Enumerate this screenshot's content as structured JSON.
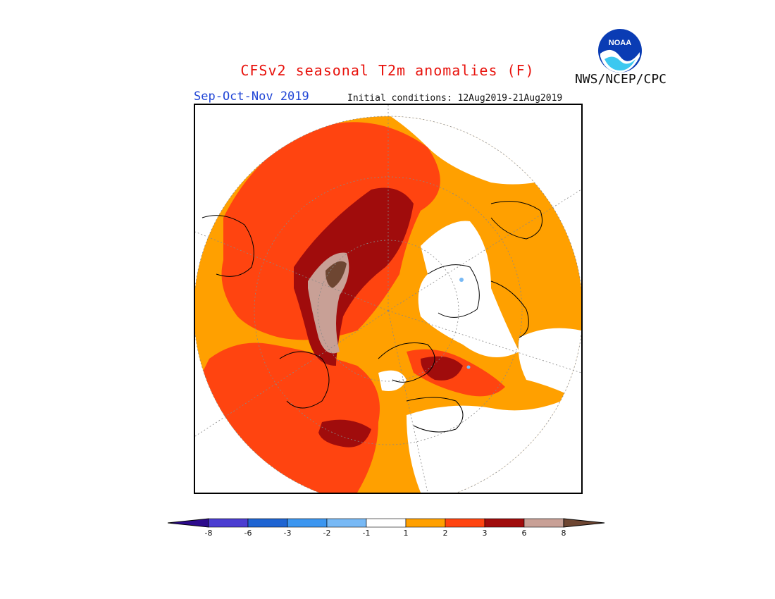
{
  "header": {
    "title": "CFSv2 seasonal T2m anomalies (F)",
    "agency": "NWS/NCEP/CPC",
    "season": "Sep-Oct-Nov 2019",
    "initial_conditions": "Initial conditions: 12Aug2019-21Aug2019",
    "logo_text": "NOAA"
  },
  "colorbar": {
    "colors": [
      "#2c0a8c",
      "#4b3dd1",
      "#1e64d2",
      "#3c96f0",
      "#78b9f5",
      "#ffffff",
      "#ffa000",
      "#ff4410",
      "#a00c0c",
      "#c8a096",
      "#6e4632"
    ],
    "labels": [
      "-8",
      "-6",
      "-3",
      "-2",
      "-1",
      "1",
      "2",
      "3",
      "6",
      "8"
    ]
  },
  "map": {
    "projection": "north-polar-stereographic",
    "colors": {
      "neutral": "#ffffff",
      "warm1": "#ffa000",
      "warm2": "#ff4410",
      "warm3": "#a00c0c",
      "warm4": "#c8a096",
      "warm5": "#6e4632",
      "cool": "#78b9f5",
      "coast": "#000000",
      "grid": "#888888"
    }
  }
}
